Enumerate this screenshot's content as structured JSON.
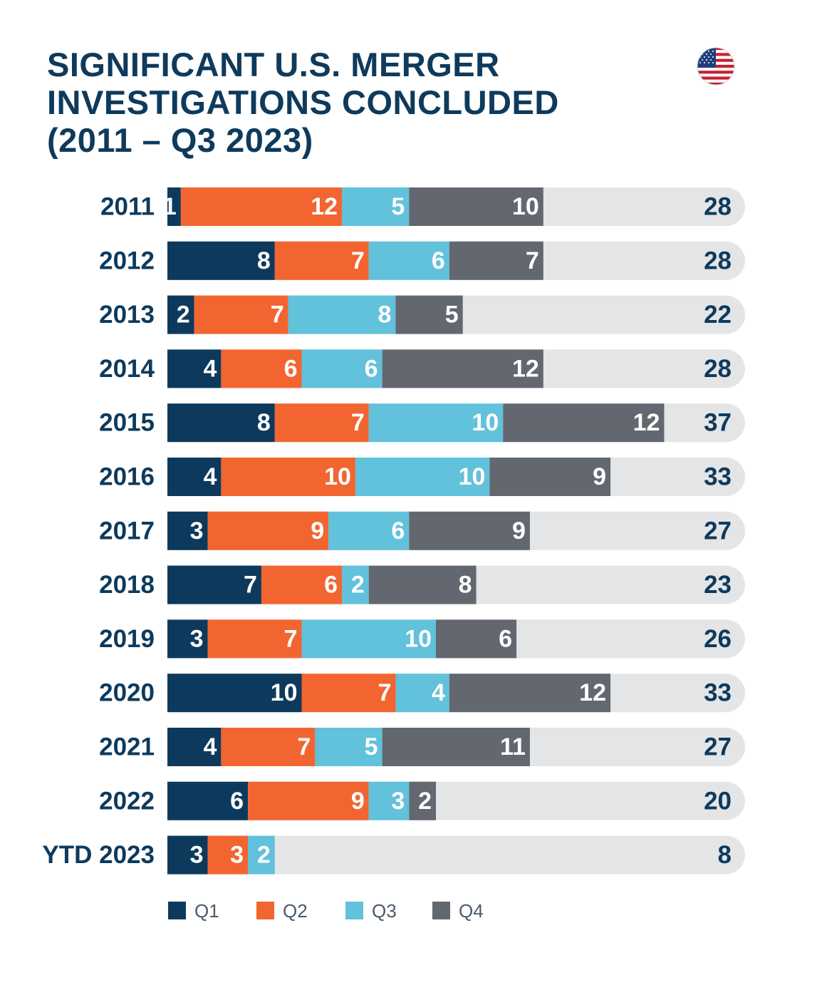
{
  "title_lines": [
    "SIGNIFICANT U.S. MERGER",
    "INVESTIGATIONS CONCLUDED",
    "(2011 – Q3 2023)"
  ],
  "flag_icon": "us-flag-icon",
  "colors": {
    "q1": "#0d3a5c",
    "q2": "#f26531",
    "q3": "#62c1db",
    "q4": "#636870",
    "track": "#e4e5e7",
    "text": "#0e3a5c"
  },
  "chart_data": {
    "type": "bar",
    "orientation": "horizontal",
    "stacked": true,
    "title": "SIGNIFICANT U.S. MERGER INVESTIGATIONS CONCLUDED (2011 – Q3 2023)",
    "categories": [
      "2011",
      "2012",
      "2013",
      "2014",
      "2015",
      "2016",
      "2017",
      "2018",
      "2019",
      "2020",
      "2021",
      "2022",
      "YTD 2023"
    ],
    "series": [
      {
        "name": "Q1",
        "values": [
          1,
          8,
          2,
          4,
          8,
          4,
          3,
          7,
          3,
          10,
          4,
          6,
          3
        ]
      },
      {
        "name": "Q2",
        "values": [
          12,
          7,
          7,
          6,
          7,
          10,
          9,
          6,
          7,
          7,
          7,
          9,
          3
        ]
      },
      {
        "name": "Q3",
        "values": [
          5,
          6,
          8,
          6,
          10,
          10,
          6,
          2,
          10,
          4,
          5,
          3,
          2
        ]
      },
      {
        "name": "Q4",
        "values": [
          10,
          7,
          5,
          12,
          12,
          9,
          9,
          8,
          6,
          12,
          11,
          2,
          null
        ]
      }
    ],
    "totals": [
      28,
      28,
      22,
      28,
      37,
      33,
      27,
      23,
      26,
      33,
      27,
      20,
      8
    ],
    "xlim": [
      0,
      43
    ],
    "legend_position": "bottom-left",
    "grid": false
  }
}
